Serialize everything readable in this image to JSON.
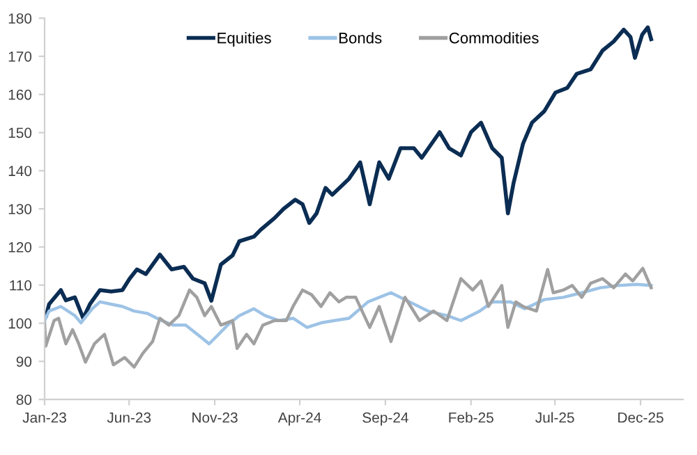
{
  "chart_data": {
    "type": "line",
    "xlim": [
      "2023-01",
      "2026-02-15"
    ],
    "ylim": [
      80,
      180
    ],
    "yticks": [
      80,
      90,
      100,
      110,
      120,
      130,
      140,
      150,
      160,
      170,
      180
    ],
    "xticks": [
      {
        "value": "2023-01",
        "label": "Jan-23"
      },
      {
        "value": "2023-06",
        "label": "Jun-23"
      },
      {
        "value": "2023-11",
        "label": "Nov-23"
      },
      {
        "value": "2024-04",
        "label": "Apr-24"
      },
      {
        "value": "2024-09",
        "label": "Sep-24"
      },
      {
        "value": "2025-02",
        "label": "Feb-25"
      },
      {
        "value": "2025-07",
        "label": "Jul-25"
      },
      {
        "value": "2025-12",
        "label": "Dec-25"
      }
    ],
    "grid": false,
    "legend": "top",
    "series": [
      {
        "name": "Equities",
        "color": "#0b2d53",
        "x": [
          "2023-01-04",
          "2023-01-09",
          "2023-01-30",
          "2023-02-08",
          "2023-02-24",
          "2023-03-11",
          "2023-03-23",
          "2023-04-10",
          "2023-04-30",
          "2023-05-20",
          "2023-06-02",
          "2023-06-15",
          "2023-07-01",
          "2023-07-26",
          "2023-08-16",
          "2023-09-07",
          "2023-09-23",
          "2023-10-14",
          "2023-10-26",
          "2023-11-12",
          "2023-12-03",
          "2023-12-15",
          "2024-01-10",
          "2024-01-22",
          "2024-02-16",
          "2024-03-03",
          "2024-03-24",
          "2024-04-06",
          "2024-04-18",
          "2024-05-01",
          "2024-05-17",
          "2024-05-29",
          "2024-06-28",
          "2024-07-18",
          "2024-08-04",
          "2024-08-21",
          "2024-09-07",
          "2024-09-28",
          "2024-10-22",
          "2024-11-05",
          "2024-12-07",
          "2024-12-24",
          "2025-01-14",
          "2025-02-01",
          "2025-02-19",
          "2025-03-11",
          "2025-03-28",
          "2025-04-08",
          "2025-04-18",
          "2025-05-05",
          "2025-05-21",
          "2025-06-12",
          "2025-07-02",
          "2025-07-23",
          "2025-08-09",
          "2025-09-03",
          "2025-09-24",
          "2025-10-14",
          "2025-11-01",
          "2025-11-13",
          "2025-11-21",
          "2025-12-04",
          "2025-12-14",
          "2025-12-20"
        ],
        "values": [
          102,
          105,
          108.7,
          106,
          106.8,
          101.3,
          105,
          108.7,
          108.3,
          108.7,
          111.7,
          114.1,
          112.9,
          118,
          114.1,
          114.8,
          111.7,
          110.5,
          105.9,
          115.4,
          117.8,
          121.5,
          122.7,
          124.5,
          127.6,
          130,
          132.4,
          131.2,
          126.3,
          128.8,
          135.5,
          133.7,
          137.9,
          142.2,
          131.2,
          142.2,
          137.9,
          145.9,
          145.9,
          143.4,
          150.1,
          145.9,
          144,
          150.1,
          152.6,
          145.9,
          143.4,
          128.8,
          136.7,
          147.1,
          152.6,
          155.6,
          160.5,
          161.7,
          165.4,
          166.6,
          171.5,
          173.9,
          177,
          175.1,
          169.6,
          175.7,
          177.6,
          174.5
        ]
      },
      {
        "name": "Bonds",
        "color": "#9dc3e6",
        "x": [
          "2023-01-01",
          "2023-01-09",
          "2023-01-30",
          "2023-02-24",
          "2023-03-07",
          "2023-03-27",
          "2023-04-10",
          "2023-04-30",
          "2023-05-20",
          "2023-06-10",
          "2023-07-03",
          "2023-07-29",
          "2023-08-19",
          "2023-09-10",
          "2023-10-06",
          "2023-10-22",
          "2023-11-08",
          "2023-11-24",
          "2023-12-15",
          "2024-01-10",
          "2024-01-30",
          "2024-02-24",
          "2024-03-20",
          "2024-04-14",
          "2024-05-09",
          "2024-06-02",
          "2024-06-28",
          "2024-08-01",
          "2024-09-11",
          "2024-10-06",
          "2024-11-16",
          "2024-12-20",
          "2025-01-14",
          "2025-02-17",
          "2025-03-11",
          "2025-04-13",
          "2025-05-08",
          "2025-06-12",
          "2025-07-16",
          "2025-08-18",
          "2025-09-20",
          "2025-10-22",
          "2025-11-24",
          "2025-12-20"
        ],
        "values": [
          100.7,
          103.2,
          104.4,
          102,
          100.1,
          103.8,
          105.6,
          105,
          104.4,
          103.2,
          102.6,
          100.7,
          99.5,
          99.5,
          96.5,
          94.6,
          97.1,
          99.5,
          102,
          103.8,
          102,
          100.7,
          101.3,
          98.9,
          100.1,
          100.7,
          101.3,
          105.6,
          108,
          106.2,
          103.2,
          102,
          100.7,
          103.2,
          105.6,
          105.6,
          103.8,
          106.2,
          106.8,
          108,
          109.3,
          109.9,
          110.2,
          109.9
        ]
      },
      {
        "name": "Commodities",
        "color": "#a0a0a0",
        "x": [
          "2023-01-01",
          "2023-01-03",
          "2023-01-18",
          "2023-01-26",
          "2023-02-08",
          "2023-02-20",
          "2023-03-03",
          "2023-03-15",
          "2023-03-31",
          "2023-04-18",
          "2023-05-04",
          "2023-05-24",
          "2023-06-10",
          "2023-06-26",
          "2023-07-13",
          "2023-07-26",
          "2023-08-11",
          "2023-08-29",
          "2023-09-17",
          "2023-09-30",
          "2023-10-14",
          "2023-10-26",
          "2023-11-12",
          "2023-12-03",
          "2023-12-11",
          "2023-12-28",
          "2024-01-10",
          "2024-01-26",
          "2024-02-16",
          "2024-03-08",
          "2024-03-20",
          "2024-04-06",
          "2024-04-22",
          "2024-05-09",
          "2024-05-25",
          "2024-06-10",
          "2024-06-23",
          "2024-07-10",
          "2024-08-04",
          "2024-08-21",
          "2024-09-11",
          "2024-10-06",
          "2024-11-01",
          "2024-11-26",
          "2024-12-20",
          "2025-01-14",
          "2025-02-04",
          "2025-02-19",
          "2025-03-04",
          "2025-03-28",
          "2025-04-08",
          "2025-04-22",
          "2025-05-05",
          "2025-05-29",
          "2025-06-18",
          "2025-06-28",
          "2025-07-16",
          "2025-08-01",
          "2025-08-18",
          "2025-09-03",
          "2025-09-24",
          "2025-10-14",
          "2025-11-04",
          "2025-11-17",
          "2025-12-05",
          "2025-12-20"
        ],
        "values": [
          100.1,
          94,
          100.7,
          101.3,
          94.6,
          98.3,
          94.6,
          89.8,
          94.6,
          97.1,
          89.1,
          91,
          88.5,
          92.2,
          95.2,
          101.3,
          99.5,
          102,
          108.7,
          106.8,
          102,
          104.4,
          99.5,
          100.7,
          93.4,
          97.1,
          94.6,
          99.5,
          100.7,
          100.7,
          104.4,
          108.7,
          107.5,
          104.4,
          108,
          105.6,
          106.8,
          106.8,
          98.9,
          104.4,
          95.2,
          106.8,
          100.7,
          103.2,
          100.7,
          111.7,
          108.7,
          111.1,
          104.4,
          109.9,
          98.9,
          105.6,
          104.4,
          103.2,
          114.1,
          108,
          108.7,
          109.9,
          106.8,
          110.5,
          111.7,
          109.3,
          112.9,
          111.1,
          114.4,
          109.3
        ]
      }
    ]
  }
}
